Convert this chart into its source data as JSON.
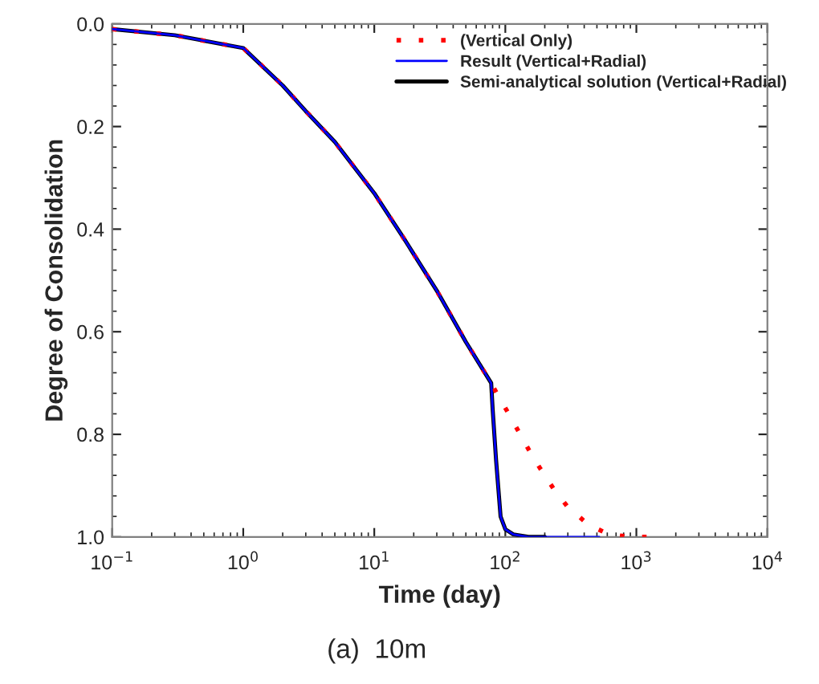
{
  "chart_data": {
    "type": "line",
    "xlabel": "Time (day)",
    "ylabel": "Degree of Consolidation",
    "log": "x",
    "xlim": [
      0.1,
      10000
    ],
    "xticks": [
      {
        "value": 0.1,
        "label": "10$^{−1}$"
      },
      {
        "value": 1,
        "label": "10$^{0}$"
      },
      {
        "value": 10,
        "label": "10$^{1}$"
      },
      {
        "value": 100,
        "label": "10$^{2}$"
      },
      {
        "value": 1000,
        "label": "10$^{3}$"
      },
      {
        "value": 10000,
        "label": "10$^{4}$"
      }
    ],
    "ylim": [
      1.0,
      0.0
    ],
    "yticks": [
      {
        "value": 0,
        "label": "0.0"
      },
      {
        "value": 0.2,
        "label": "0.2"
      },
      {
        "value": 0.4,
        "label": "0.4"
      },
      {
        "value": 0.6,
        "label": "0.6"
      },
      {
        "value": 0.8,
        "label": "0.8"
      },
      {
        "value": 1,
        "label": "1.0"
      }
    ],
    "grid": false,
    "legend": "top right",
    "series": [
      {
        "name": "(Vertical Only)",
        "color": "#ff0000",
        "line_style": "dotted",
        "x": [
          0.1,
          0.3,
          1,
          2,
          3,
          5,
          10,
          17,
          30,
          50,
          78,
          86,
          105,
          126,
          151,
          185,
          232,
          298,
          430,
          617,
          927,
          1350
        ],
        "values": [
          0.01,
          0.022,
          0.047,
          0.12,
          0.17,
          0.23,
          0.33,
          0.42,
          0.52,
          0.62,
          0.7,
          0.72,
          0.758,
          0.794,
          0.83,
          0.867,
          0.905,
          0.941,
          0.976,
          0.995,
          1.0,
          1.0
        ]
      },
      {
        "name": "Result (Vertical+Radial)",
        "color": "#0000ff",
        "line_style": "solid",
        "x": [
          0.1,
          0.3,
          1,
          2,
          3,
          5,
          10,
          17,
          30,
          50,
          78,
          80,
          85,
          92,
          100,
          115,
          150,
          300,
          520
        ],
        "values": [
          0.01,
          0.022,
          0.047,
          0.12,
          0.17,
          0.23,
          0.33,
          0.42,
          0.52,
          0.62,
          0.7,
          0.75,
          0.85,
          0.96,
          0.985,
          0.995,
          1.0,
          1.0,
          1.0
        ]
      },
      {
        "name": "Semi-analytical solution (Vertical+Radial)",
        "color": "#000000",
        "line_style": "solid",
        "x": [
          0.1,
          0.3,
          1,
          2,
          3,
          5,
          10,
          17,
          30,
          50,
          78,
          80,
          85,
          92,
          100,
          115,
          150,
          200
        ],
        "values": [
          0.01,
          0.022,
          0.047,
          0.12,
          0.17,
          0.23,
          0.33,
          0.42,
          0.52,
          0.62,
          0.7,
          0.75,
          0.85,
          0.96,
          0.985,
          0.995,
          1.0,
          1.0
        ]
      }
    ],
    "annotations": [
      "(a)  10m"
    ]
  }
}
